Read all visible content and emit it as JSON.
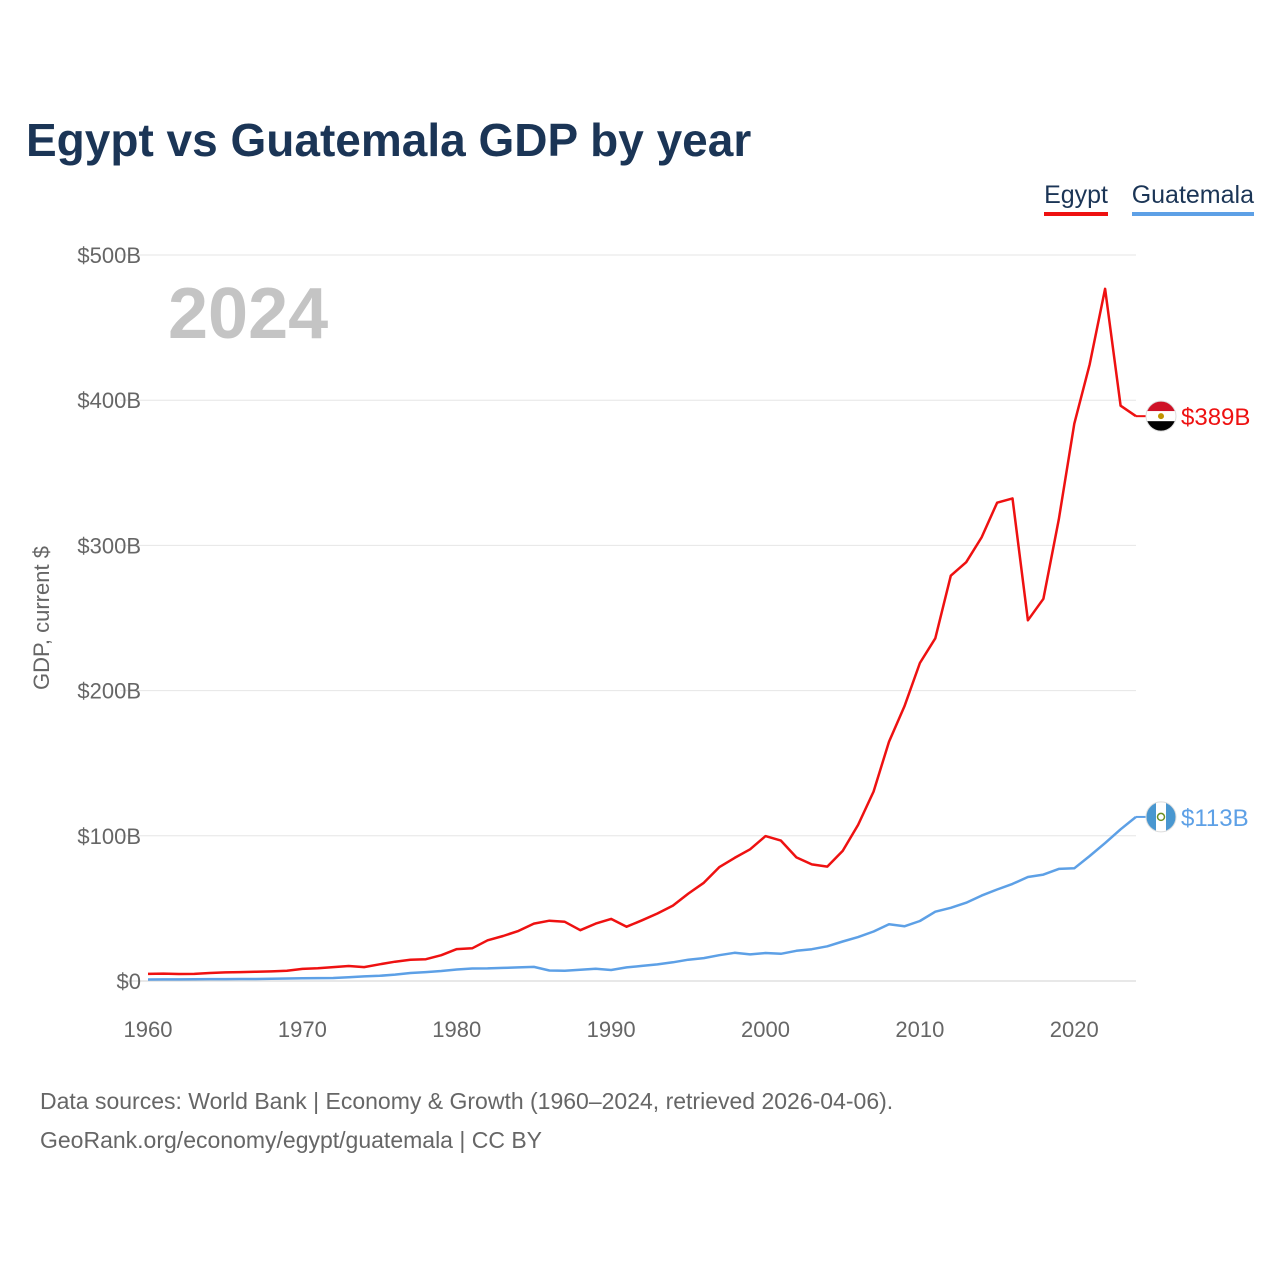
{
  "title": "Egypt vs Guatemala GDP by year",
  "year_label": "2024",
  "footer": {
    "line1": "Data sources: World Bank | Economy & Growth (1960–2024, retrieved 2026-04-06).",
    "line2": "GeoRank.org/economy/egypt/guatemala | CC BY"
  },
  "colors": {
    "egypt": "#ee1111",
    "guatemala": "#5da0e6",
    "title": "#1b3556",
    "axis_text": "#666666",
    "grid": "#e6e6e6",
    "year_watermark": "#c4c4c4"
  },
  "chart_data": {
    "type": "line",
    "title": "Egypt vs Guatemala GDP by year",
    "xlabel": "",
    "ylabel": "GDP, current $",
    "xlim": [
      1960,
      2024
    ],
    "ylim": [
      0,
      500
    ],
    "value_unit": "billions USD",
    "grid": true,
    "legend": "top-right",
    "x_ticks": [
      1960,
      1970,
      1980,
      1990,
      2000,
      2010,
      2020
    ],
    "x_tick_labels": [
      "1960",
      "1970",
      "1980",
      "1990",
      "2000",
      "2010",
      "2020"
    ],
    "y_ticks": [
      0,
      100,
      200,
      300,
      400,
      500
    ],
    "y_tick_labels": [
      "$0",
      "$100B",
      "$200B",
      "$300B",
      "$400B",
      "$500B"
    ],
    "x": [
      1960,
      1961,
      1962,
      1963,
      1964,
      1965,
      1966,
      1967,
      1968,
      1969,
      1970,
      1971,
      1972,
      1973,
      1974,
      1975,
      1976,
      1977,
      1978,
      1979,
      1980,
      1981,
      1982,
      1983,
      1984,
      1985,
      1986,
      1987,
      1988,
      1989,
      1990,
      1991,
      1992,
      1993,
      1994,
      1995,
      1996,
      1997,
      1998,
      1999,
      2000,
      2001,
      2002,
      2003,
      2004,
      2005,
      2006,
      2007,
      2008,
      2009,
      2010,
      2011,
      2012,
      2013,
      2014,
      2015,
      2016,
      2017,
      2018,
      2019,
      2020,
      2021,
      2022,
      2023,
      2024
    ],
    "series": [
      {
        "name": "Egypt",
        "end_label": "$389B",
        "values": [
          4.9,
          5.1,
          4.8,
          4.9,
          5.5,
          5.9,
          6.1,
          6.4,
          6.6,
          7.0,
          8.3,
          8.8,
          9.6,
          10.3,
          9.6,
          11.5,
          13.3,
          14.6,
          15.0,
          17.8,
          22.0,
          22.5,
          28.0,
          31.0,
          34.5,
          39.5,
          41.5,
          40.8,
          35.0,
          39.5,
          42.8,
          37.4,
          41.8,
          46.5,
          51.9,
          60.2,
          67.6,
          78.4,
          84.8,
          90.7,
          99.8,
          96.7,
          85.1,
          80.3,
          78.8,
          89.6,
          107.5,
          130.5,
          164.8,
          189.1,
          219.0,
          236.0,
          279.1,
          288.4,
          305.5,
          329.4,
          332.4,
          248.4,
          263.2,
          317.9,
          383.8,
          424.7,
          476.7,
          396.2,
          389.0
        ]
      },
      {
        "name": "Guatemala",
        "end_label": "$113B",
        "values": [
          1.0,
          1.1,
          1.1,
          1.2,
          1.3,
          1.3,
          1.4,
          1.4,
          1.6,
          1.7,
          1.9,
          2.0,
          2.1,
          2.6,
          3.2,
          3.6,
          4.4,
          5.5,
          6.1,
          6.9,
          7.9,
          8.6,
          8.7,
          9.0,
          9.4,
          9.7,
          7.2,
          7.0,
          7.8,
          8.4,
          7.6,
          9.4,
          10.4,
          11.4,
          12.9,
          14.7,
          15.8,
          17.8,
          19.4,
          18.3,
          19.3,
          18.7,
          20.8,
          21.9,
          23.9,
          27.2,
          30.2,
          34.1,
          39.1,
          37.7,
          41.3,
          47.7,
          50.4,
          53.9,
          58.8,
          63.0,
          66.9,
          71.6,
          73.3,
          77.2,
          77.6,
          86.1,
          95.0,
          104.5,
          113.0
        ]
      }
    ]
  }
}
